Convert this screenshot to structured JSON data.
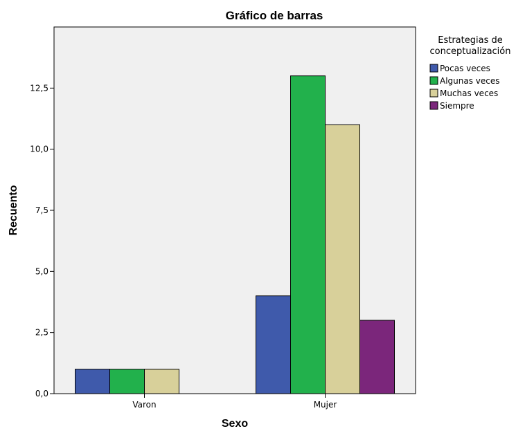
{
  "chart_data": {
    "type": "bar",
    "title": "Gráfico de barras",
    "xlabel": "Sexo",
    "ylabel": "Recuento",
    "categories": [
      "Varon",
      "Mujer"
    ],
    "series": [
      {
        "name": "Pocas veces",
        "values": [
          1,
          4
        ],
        "color": "#3F5AAB"
      },
      {
        "name": "Algunas veces",
        "values": [
          1,
          13
        ],
        "color": "#22B14C"
      },
      {
        "name": "Muchas veces",
        "values": [
          1,
          11
        ],
        "color": "#D8D09A"
      },
      {
        "name": "Siempre",
        "values": [
          0,
          3
        ],
        "color": "#7B267B"
      }
    ],
    "ylim": [
      0,
      15
    ],
    "yticks": [
      "0,0",
      "2,5",
      "5,0",
      "7,5",
      "10,0",
      "12,5"
    ],
    "ytick_values": [
      0,
      2.5,
      5,
      7.5,
      10,
      12.5
    ],
    "legend": {
      "title_lines": [
        "Estrategias de",
        "conceptualización"
      ],
      "placement": "right"
    },
    "plot_background": "#F0F0F0",
    "grid": false
  }
}
